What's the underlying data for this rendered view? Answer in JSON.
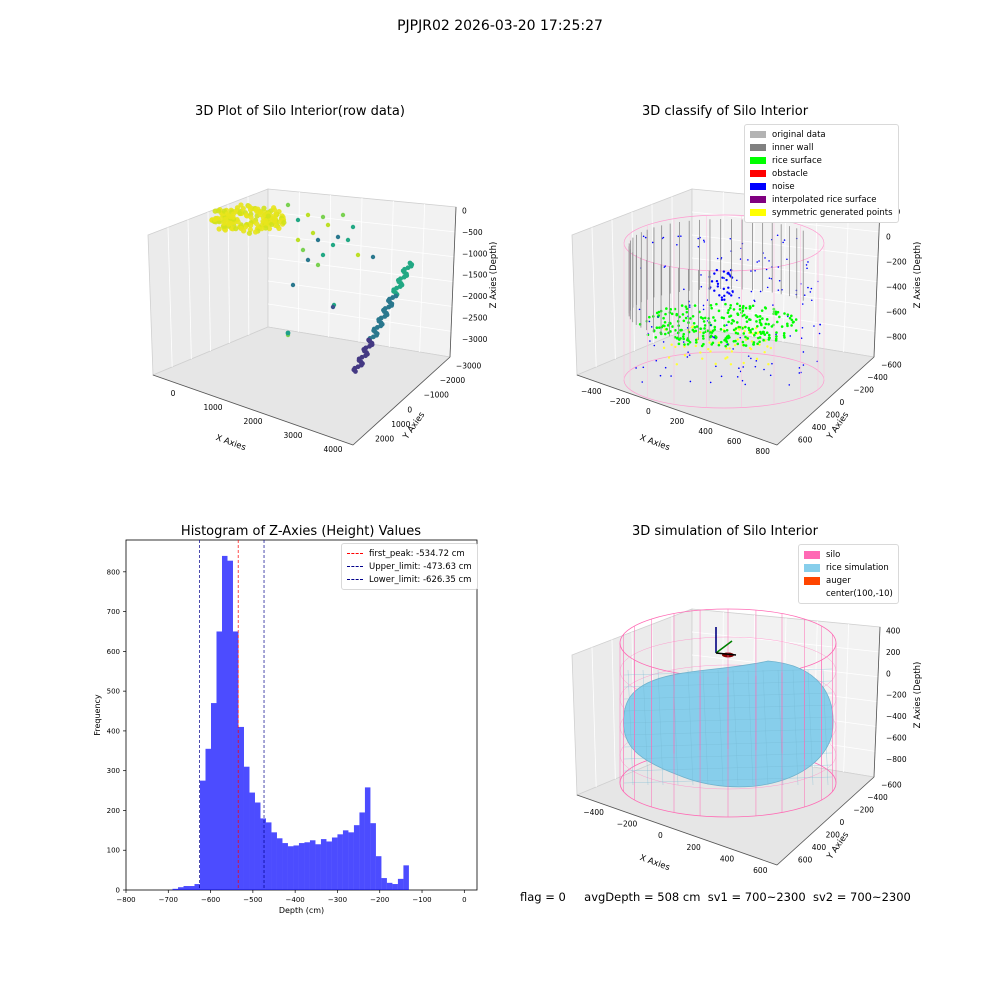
{
  "suptitle": "PJPJR02 2026-03-20 17:25:27",
  "chart_data": [
    {
      "type": "scatter3d",
      "title": "3D Plot of Silo Interior(row data)",
      "xlabel": "X Axies",
      "ylabel": "Y Axies",
      "zlabel": "Z Axies (Depth)",
      "xticks": [
        "0",
        "1000",
        "2000",
        "3000",
        "4000"
      ],
      "yticks": [
        "2000",
        "1000",
        "0",
        "−1000",
        "−2000",
        "−3000"
      ],
      "zticks": [
        "0",
        "−500",
        "−1000",
        "−1500",
        "−2000",
        "−2500",
        "−3000"
      ]
    },
    {
      "type": "scatter3d",
      "title": "3D classify of Silo Interior",
      "xlabel": "X Axies",
      "ylabel": "Y Axies",
      "zlabel": "Z Axies (Depth)",
      "xticks": [
        "−400",
        "−200",
        "0",
        "200",
        "400",
        "600",
        "800"
      ],
      "yticks": [
        "600",
        "400",
        "200",
        "0",
        "−200",
        "−400",
        "−600"
      ],
      "zticks": [
        "200",
        "0",
        "−200",
        "−400",
        "−600",
        "−800"
      ],
      "legend": [
        {
          "label": "original data",
          "color": "#b3b3b3"
        },
        {
          "label": "inner wall",
          "color": "#808080"
        },
        {
          "label": "rice surface",
          "color": "#00ff00"
        },
        {
          "label": "obstacle",
          "color": "#ff0000"
        },
        {
          "label": "noise",
          "color": "#0000ff"
        },
        {
          "label": "interpolated rice surface",
          "color": "#800080"
        },
        {
          "label": "symmetric generated points",
          "color": "#ffff00"
        }
      ]
    },
    {
      "type": "bar",
      "title": "Histogram of Z-Axies (Height) Values",
      "xlabel": "Depth (cm)",
      "ylabel": "Frequency",
      "xlim": [
        -800,
        30
      ],
      "ylim": [
        0,
        880
      ],
      "xticks": [
        "−800",
        "−700",
        "−600",
        "−500",
        "−400",
        "−300",
        "−200",
        "−100",
        "0"
      ],
      "yticks": [
        "0",
        "100",
        "200",
        "300",
        "400",
        "500",
        "600",
        "700",
        "800"
      ],
      "bin_start": -690,
      "bin_width": 13,
      "values": [
        3,
        7,
        10,
        10,
        15,
        275,
        355,
        470,
        650,
        840,
        828,
        650,
        410,
        310,
        245,
        220,
        180,
        170,
        145,
        130,
        118,
        110,
        112,
        118,
        120,
        125,
        115,
        128,
        122,
        132,
        140,
        150,
        145,
        163,
        195,
        258,
        168,
        85,
        30,
        18,
        15,
        28,
        62
      ],
      "bar_color": "#0000ff",
      "lines": [
        {
          "label": "first_peak: -534.72 cm",
          "x": -534.72,
          "color": "#ff0000"
        },
        {
          "label": "Upper_limit: -473.63 cm",
          "x": -473.63,
          "color": "#00008b"
        },
        {
          "label": "Lower_limit: -626.35 cm",
          "x": -626.35,
          "color": "#00008b"
        }
      ]
    },
    {
      "type": "surface3d",
      "title": "3D simulation of Silo Interior",
      "xlabel": "X Axies",
      "ylabel": "Y Axies",
      "zlabel": "Z Axies (Depth)",
      "xticks": [
        "−400",
        "−200",
        "0",
        "200",
        "400",
        "600"
      ],
      "yticks": [
        "600",
        "400",
        "200",
        "0",
        "−200",
        "−400",
        "−600"
      ],
      "zticks": [
        "400",
        "200",
        "0",
        "−200",
        "−400",
        "−600",
        "−800"
      ],
      "legend": [
        {
          "label": "silo",
          "color": "#ff69b4"
        },
        {
          "label": "rice simulation",
          "color": "#87ceeb"
        },
        {
          "label": "auger",
          "color": "#ff4500"
        },
        {
          "label": "center(100,-10)",
          "color": ""
        }
      ]
    }
  ],
  "footer": {
    "flag": "flag = 0",
    "avg": "avgDepth = 508 cm",
    "sv1": "sv1 = 700~2300",
    "sv2": "sv2 = 700~2300"
  }
}
